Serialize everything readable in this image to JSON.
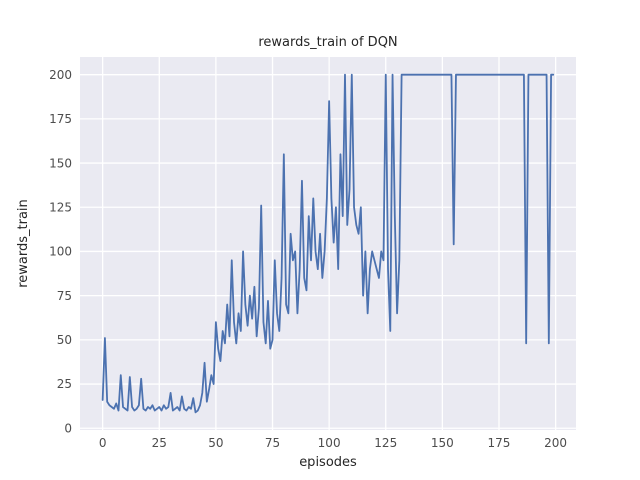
{
  "chart_data": {
    "type": "line",
    "title": "rewards_train of DQN",
    "xlabel": "episodes",
    "ylabel": "rewards_train",
    "series_name": "rewards_train",
    "x_ticks": [
      0,
      25,
      50,
      75,
      100,
      125,
      150,
      175,
      200
    ],
    "y_ticks": [
      0,
      25,
      50,
      75,
      100,
      125,
      150,
      175,
      200
    ],
    "xlim": [
      -10,
      209
    ],
    "ylim": [
      -1,
      210
    ],
    "x_start": 0,
    "x_step": 1,
    "grid": true,
    "legend": "none",
    "line_color": "#4c72b0",
    "plot_bg": "#eaeaf2",
    "grid_color": "#ffffff",
    "figure_bg": "#ffffff",
    "values": [
      16,
      51,
      15,
      13,
      12,
      11,
      14,
      10,
      30,
      12,
      11,
      10,
      29,
      12,
      10,
      11,
      13,
      28,
      11,
      10,
      12,
      11,
      13,
      10,
      11,
      12,
      10,
      13,
      11,
      12,
      20,
      10,
      11,
      12,
      10,
      18,
      11,
      10,
      12,
      11,
      17,
      9,
      10,
      13,
      20,
      37,
      15,
      22,
      30,
      25,
      60,
      45,
      38,
      55,
      48,
      70,
      52,
      95,
      60,
      48,
      65,
      55,
      100,
      70,
      58,
      75,
      62,
      80,
      52,
      68,
      126,
      60,
      48,
      72,
      45,
      50,
      95,
      65,
      55,
      85,
      155,
      70,
      65,
      110,
      95,
      100,
      65,
      90,
      140,
      85,
      78,
      120,
      95,
      130,
      100,
      90,
      110,
      85,
      100,
      130,
      185,
      130,
      105,
      125,
      90,
      155,
      120,
      200,
      115,
      135,
      200,
      125,
      115,
      110,
      125,
      75,
      100,
      65,
      90,
      100,
      95,
      90,
      85,
      100,
      95,
      200,
      90,
      55,
      200,
      120,
      65,
      95,
      200,
      200,
      200,
      200,
      200,
      200,
      200,
      200,
      200,
      200,
      200,
      200,
      200,
      200,
      200,
      200,
      200,
      200,
      200,
      200,
      200,
      200,
      200,
      104,
      200,
      200,
      200,
      200,
      200,
      200,
      200,
      200,
      200,
      200,
      200,
      200,
      200,
      200,
      200,
      200,
      200,
      200,
      200,
      200,
      200,
      200,
      200,
      200,
      200,
      200,
      200,
      200,
      200,
      200,
      200,
      48,
      200,
      200,
      200,
      200,
      200,
      200,
      200,
      200,
      200,
      48,
      200,
      200
    ]
  }
}
